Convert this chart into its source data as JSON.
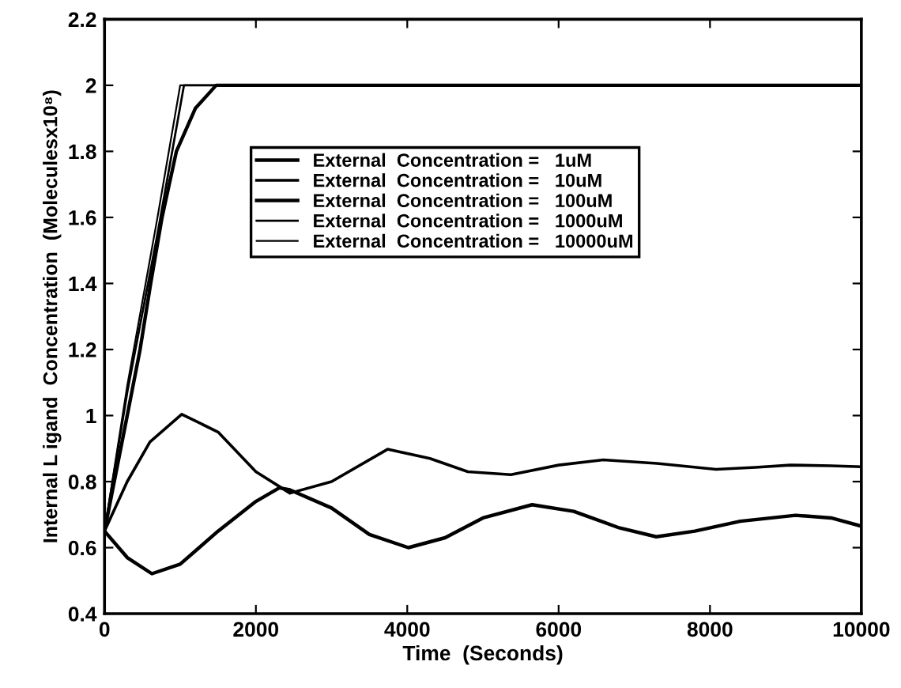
{
  "chart_data": {
    "type": "line",
    "xlabel": "Time  (Seconds)",
    "ylabel": "Internal L igand  Concentration  (Moleculesx10⁸)",
    "xlim": [
      0,
      10000
    ],
    "ylim": [
      0.4,
      2.2
    ],
    "xticks": [
      0,
      2000,
      4000,
      6000,
      8000,
      10000
    ],
    "yticks": [
      {
        "value": 0.4,
        "label": "0.4"
      },
      {
        "value": 0.6,
        "label": "0.6"
      },
      {
        "value": 0.8,
        "label": "0.8"
      },
      1,
      {
        "value": 1.2,
        "label": "1.2"
      },
      {
        "value": 1.4,
        "label": "1.4"
      },
      {
        "value": 1.6,
        "label": "1.6"
      },
      {
        "value": 1.8,
        "label": "1.8"
      },
      2,
      {
        "value": 2.2,
        "label": "2.2"
      }
    ],
    "grid": false,
    "legend": "top",
    "line_style": "solid",
    "series": [
      {
        "name": "External  Concentration =   1uM",
        "color": "#000000",
        "x": [
          0,
          300,
          626,
          1000,
          1500,
          2000,
          2310,
          2450,
          3000,
          3500,
          4015,
          4500,
          5000,
          5650,
          6200,
          6800,
          7290,
          7800,
          8400,
          9130,
          9600,
          10000
        ],
        "values": [
          0.65,
          0.57,
          0.521,
          0.55,
          0.65,
          0.74,
          0.781,
          0.775,
          0.72,
          0.64,
          0.6,
          0.63,
          0.69,
          0.73,
          0.71,
          0.66,
          0.633,
          0.65,
          0.68,
          0.698,
          0.69,
          0.665
        ]
      },
      {
        "name": "External  Concentration =   10uM",
        "color": "#000000",
        "x": [
          0,
          300,
          600,
          1020,
          1500,
          2000,
          2450,
          3000,
          3740,
          4300,
          4800,
          5370,
          6000,
          6590,
          7300,
          8080,
          8600,
          9060,
          9600,
          10000
        ],
        "values": [
          0.65,
          0.8,
          0.92,
          1.004,
          0.95,
          0.83,
          0.765,
          0.8,
          0.898,
          0.87,
          0.83,
          0.821,
          0.85,
          0.866,
          0.855,
          0.837,
          0.843,
          0.85,
          0.848,
          0.845
        ]
      },
      {
        "name": "External  Concentration =   100uM",
        "color": "#000000",
        "x": [
          0,
          300,
          470,
          610,
          760,
          950,
          1200,
          1475,
          10000
        ],
        "values": [
          0.65,
          1.0,
          1.2,
          1.4,
          1.6,
          1.8,
          1.93,
          2.0,
          2.0
        ]
      },
      {
        "name": "External  Concentration =   1000uM",
        "color": "#000000",
        "x": [
          0,
          300,
          700,
          1050,
          10000
        ],
        "values": [
          0.65,
          1.07,
          1.55,
          2.0,
          2.0
        ]
      },
      {
        "name": "External  Concentration =   10000uM",
        "color": "#000000",
        "x": [
          0,
          300,
          700,
          1000,
          10000
        ],
        "values": [
          0.65,
          1.09,
          1.6,
          2.0,
          2.0
        ]
      }
    ]
  }
}
